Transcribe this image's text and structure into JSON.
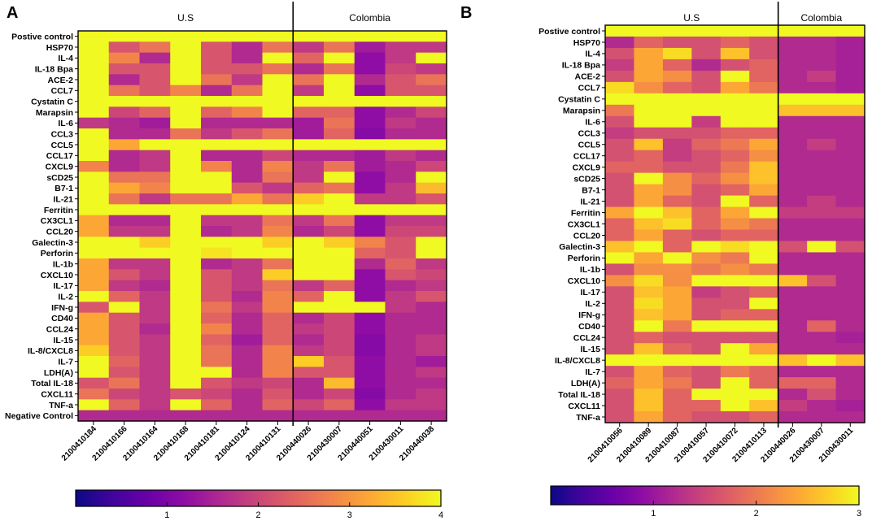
{
  "chart_data": [
    {
      "panel_label": "A",
      "type": "heatmap",
      "groups": [
        {
          "name": "U.S",
          "count": 7
        },
        {
          "name": "Colombia",
          "count": 5
        }
      ],
      "columns": [
        "2100410184",
        "2100410166",
        "2100410164",
        "2100410168",
        "2100410181",
        "2100410124",
        "2100410131",
        "2100440026",
        "2100430007",
        "2100440051",
        "2100430011",
        "2100440038"
      ],
      "rows": [
        "Postive control",
        "HSP70",
        "IL-4",
        "IL-18 Bpa",
        "ACE-2",
        "CCL7",
        "Cystatin C",
        "Marapsin",
        "IL-6",
        "CCL3",
        "CCL5",
        "CCL17",
        "CXCL9",
        "sCD25",
        "B7-1",
        "IL-21",
        "Ferritin",
        "CX3CL1",
        "CCL20",
        "Galectin-3",
        "Perforin",
        "IL-1b",
        "CXCL10",
        "IL-17",
        "IL-2",
        "IFN-g",
        "CD40",
        "CCL24",
        "IL-15",
        "IL-8/CXCL8",
        "IL-7",
        "LDH(A)",
        "Total IL-18",
        "CXCL11",
        "TNF-a",
        "Negative Control"
      ],
      "values": [
        [
          4,
          4,
          4,
          4,
          4,
          4,
          4,
          4,
          4,
          4,
          4,
          4
        ],
        [
          4,
          2.2,
          2.6,
          4,
          2.2,
          1.6,
          2.6,
          1.8,
          2.6,
          1.4,
          1.8,
          1.8
        ],
        [
          4,
          2.8,
          1.6,
          4,
          2.2,
          1.6,
          4,
          2.4,
          4,
          1.2,
          1.8,
          4
        ],
        [
          4,
          2.2,
          2.2,
          4,
          2.2,
          2.2,
          2.6,
          1.6,
          2.6,
          1.2,
          2,
          1.8
        ],
        [
          4,
          1.6,
          2.2,
          4,
          2.6,
          1.8,
          4,
          2.6,
          4,
          1.6,
          2.2,
          2.6
        ],
        [
          4,
          2.6,
          2.2,
          2.8,
          1.6,
          2.6,
          4,
          1.8,
          4,
          1.2,
          2.2,
          2.2
        ],
        [
          4,
          4,
          4,
          4,
          4,
          4,
          4,
          4,
          4,
          4,
          4,
          4
        ],
        [
          4,
          2,
          2.4,
          4,
          2.4,
          2.8,
          4,
          2.4,
          2.4,
          1.2,
          1.6,
          2
        ],
        [
          1.8,
          1.6,
          1.4,
          4,
          1.6,
          1.6,
          1.6,
          1.4,
          2.6,
          1.2,
          1.8,
          1.6
        ],
        [
          4,
          1.6,
          1.6,
          2.6,
          1.8,
          2.2,
          2.6,
          1.4,
          2.4,
          1.1,
          1.6,
          1.6
        ],
        [
          4,
          3.2,
          4,
          4,
          4,
          4,
          4,
          4,
          4,
          4,
          4,
          4
        ],
        [
          4,
          1.6,
          1.8,
          4,
          1.6,
          1.6,
          2,
          1.6,
          1.6,
          1.4,
          1.8,
          1.6
        ],
        [
          2.8,
          1.6,
          1.8,
          4,
          2.8,
          1.6,
          2.8,
          1.8,
          2.6,
          1.4,
          1.6,
          2
        ],
        [
          4,
          2.6,
          2.6,
          4,
          4,
          1.6,
          2.6,
          1.8,
          4,
          1.2,
          1.6,
          4
        ],
        [
          4,
          3.2,
          2.8,
          4,
          4,
          2.2,
          1.8,
          2.4,
          2.6,
          1.2,
          1.8,
          3.4
        ],
        [
          4,
          2.6,
          1.8,
          2.6,
          2.6,
          3.2,
          2.6,
          3.6,
          4,
          1.8,
          1.8,
          2.2
        ],
        [
          4,
          4,
          4,
          4,
          4,
          4,
          4,
          4,
          4,
          4,
          4,
          4
        ],
        [
          3.2,
          1.6,
          1.6,
          4,
          1.8,
          1.8,
          2.6,
          1.8,
          2.6,
          1.2,
          1.8,
          1.8
        ],
        [
          3.2,
          1.8,
          1.8,
          4,
          1.6,
          1.8,
          2.8,
          1.6,
          2,
          1.2,
          2,
          2
        ],
        [
          4,
          4,
          3.6,
          4,
          4,
          4,
          3.6,
          4,
          3.6,
          2.8,
          2.2,
          4
        ],
        [
          4,
          4,
          4,
          4,
          3.8,
          4,
          4,
          4,
          4,
          2.4,
          2.2,
          4
        ],
        [
          3.2,
          1.8,
          1.8,
          4,
          1.6,
          1.8,
          2.6,
          4,
          4,
          1.6,
          2.4,
          1.8
        ],
        [
          3.2,
          2.2,
          1.8,
          4,
          2.2,
          1.8,
          3.6,
          4,
          4,
          1.2,
          2.2,
          2
        ],
        [
          3.2,
          1.8,
          1.6,
          4,
          2.2,
          1.8,
          2.6,
          1.8,
          2.4,
          1.2,
          1.6,
          1.8
        ],
        [
          4,
          2.4,
          1.8,
          4,
          2.2,
          1.6,
          2.8,
          2.4,
          4,
          1.2,
          1.8,
          2.2
        ],
        [
          2.2,
          4,
          1.8,
          4,
          2.6,
          1.8,
          2.8,
          4,
          4,
          4,
          1.8,
          1.6
        ],
        [
          3.2,
          2.2,
          1.8,
          4,
          2.4,
          1.6,
          2.4,
          1.6,
          2,
          1.2,
          1.6,
          1.6
        ],
        [
          3.2,
          2.2,
          1.6,
          4,
          2.8,
          1.6,
          2.4,
          1.8,
          2,
          1.2,
          1.6,
          1.6
        ],
        [
          3.2,
          2.2,
          1.8,
          4,
          2.4,
          1.4,
          2.4,
          1.6,
          2,
          1.1,
          1.6,
          1.8
        ],
        [
          3.6,
          2.2,
          1.8,
          4,
          2.6,
          1.6,
          2.8,
          1.8,
          2,
          1.1,
          1.6,
          1.8
        ],
        [
          4,
          2.4,
          1.8,
          4,
          2.6,
          1.6,
          2.8,
          3.6,
          2.2,
          1.2,
          1.6,
          1.4
        ],
        [
          4,
          2.2,
          1.8,
          4,
          4,
          1.6,
          2.8,
          2.2,
          2.2,
          1.2,
          1.6,
          1.8
        ],
        [
          2.2,
          2.6,
          1.8,
          4,
          2.2,
          1.8,
          2,
          1.6,
          3.4,
          1.2,
          1.6,
          1.6
        ],
        [
          2.6,
          2,
          1.8,
          2.2,
          2,
          1.6,
          2.2,
          1.6,
          2,
          1.1,
          1.6,
          1.8
        ],
        [
          4,
          2.4,
          1.8,
          4,
          2.4,
          1.6,
          2.4,
          2,
          2.4,
          1.2,
          1.8,
          1.8
        ],
        [
          1.6,
          1.6,
          1.6,
          1.6,
          1.6,
          1.6,
          1.6,
          1.6,
          1.6,
          1.6,
          1.6,
          1.6
        ]
      ],
      "colorbar": {
        "min": 0,
        "max": 4,
        "ticks": [
          1,
          2,
          3,
          4
        ]
      }
    },
    {
      "panel_label": "B",
      "type": "heatmap",
      "groups": [
        {
          "name": "U.S",
          "count": 6
        },
        {
          "name": "Colombia",
          "count": 3
        }
      ],
      "columns": [
        "2100410056",
        "2100410089",
        "2100410087",
        "2100410057",
        "2100410072",
        "2100410113",
        "2100440026",
        "2100430007",
        "2100430011"
      ],
      "rows": [
        "Postive control",
        "HSP70",
        "IL-4",
        "IL-18 Bpa",
        "ACE-2",
        "CCL7",
        "Cystatin C",
        "Marapsin",
        "IL-6",
        "CCL3",
        "CCL5",
        "CCL17",
        "CXCL9",
        "sCD25",
        "B7-1",
        "IL-21",
        "Ferritin",
        "CX3CL1",
        "CCL20",
        "Galectin-3",
        "Perforin",
        "IL-1b",
        "CXCL10",
        "IL-17",
        "IL-2",
        "IFN-g",
        "CD40",
        "CCL24",
        "IL-15",
        "IL-8/CXCL8",
        "IL-7",
        "LDH(A)",
        "Total IL-18",
        "CXCL11",
        "TNF-a"
      ],
      "values": [
        [
          3,
          3,
          3,
          3,
          3,
          3,
          3,
          3,
          3
        ],
        [
          1.2,
          1.8,
          1.6,
          1.6,
          1.8,
          1.6,
          1.2,
          1.2,
          1.1
        ],
        [
          1.6,
          2.4,
          2.8,
          1.6,
          2.6,
          1.6,
          1.2,
          1.2,
          1.1
        ],
        [
          1.4,
          2.4,
          1.8,
          1.2,
          1.6,
          1.8,
          1.2,
          1.2,
          1.1
        ],
        [
          1.6,
          2.4,
          2.2,
          1.6,
          3,
          1.8,
          1.2,
          1.4,
          1.1
        ],
        [
          2.8,
          2.2,
          1.8,
          1.6,
          2.4,
          2,
          1.2,
          1.2,
          1.1
        ],
        [
          3,
          3,
          3,
          3,
          3,
          3,
          3,
          3,
          3
        ],
        [
          2,
          3,
          3,
          3,
          3,
          3,
          2.6,
          2.6,
          2.6
        ],
        [
          1.6,
          3,
          3,
          1.4,
          3,
          3,
          1.2,
          1.2,
          1.2
        ],
        [
          1.4,
          1.6,
          1.6,
          1.6,
          1.8,
          1.8,
          1.2,
          1.2,
          1.2
        ],
        [
          1.6,
          2.6,
          1.4,
          1.8,
          2,
          2.4,
          1.2,
          1.4,
          1.2
        ],
        [
          1.6,
          1.8,
          1.4,
          1.6,
          1.8,
          2.2,
          1.2,
          1.2,
          1.2
        ],
        [
          1.8,
          1.8,
          1.6,
          1.6,
          2,
          2.6,
          1.2,
          1.2,
          1.2
        ],
        [
          1.6,
          3,
          2.2,
          1.8,
          2.2,
          2.6,
          1.2,
          1.2,
          1.2
        ],
        [
          1.6,
          2.4,
          2.2,
          1.6,
          1.8,
          2.4,
          1.2,
          1.2,
          1.2
        ],
        [
          1.6,
          2.4,
          1.8,
          1.6,
          3,
          1.8,
          1.2,
          1.4,
          1.2
        ],
        [
          2.4,
          3,
          2.6,
          1.8,
          2.4,
          3,
          1.4,
          1.4,
          1.4
        ],
        [
          1.8,
          2.6,
          2.8,
          1.8,
          2.2,
          2,
          1.2,
          1.2,
          1.2
        ],
        [
          1.8,
          2.4,
          1.8,
          1.6,
          1.8,
          1.8,
          1.2,
          1.2,
          1.2
        ],
        [
          2.6,
          3,
          1.8,
          3,
          2.8,
          3,
          1.6,
          3,
          1.6
        ],
        [
          3,
          2.4,
          3,
          2.2,
          2,
          3,
          1.2,
          1.2,
          1.2
        ],
        [
          1.6,
          2.2,
          2.2,
          2,
          2.2,
          2,
          1.2,
          1.2,
          1.2
        ],
        [
          2.2,
          2.8,
          2.2,
          3,
          3,
          3,
          2.6,
          1.6,
          1.2
        ],
        [
          1.6,
          2.6,
          2.4,
          1.4,
          1.6,
          1.8,
          1.2,
          1.2,
          1.2
        ],
        [
          1.6,
          2.8,
          2.4,
          1.6,
          1.6,
          3,
          1.2,
          1.2,
          1.2
        ],
        [
          1.6,
          2.6,
          2.4,
          1.6,
          1.8,
          1.8,
          1.2,
          1.2,
          1.2
        ],
        [
          1.6,
          3,
          2,
          3,
          3,
          3,
          1.2,
          1.8,
          1.2
        ],
        [
          1.6,
          1.8,
          1.6,
          1.6,
          1.6,
          1.6,
          1.2,
          1.2,
          1.1
        ],
        [
          1.6,
          2.6,
          1.8,
          1.6,
          3,
          2.4,
          1.2,
          1.2,
          1.2
        ],
        [
          3,
          3,
          3,
          3,
          3,
          3,
          2.6,
          3,
          2.6
        ],
        [
          1.6,
          2.4,
          1.8,
          1.6,
          2,
          1.8,
          1.2,
          1.2,
          1.2
        ],
        [
          1.8,
          2.4,
          2,
          1.6,
          3,
          1.8,
          1.8,
          1.8,
          1.2
        ],
        [
          1.6,
          2.6,
          1.8,
          3,
          3,
          3,
          1.2,
          1.6,
          1.2
        ],
        [
          1.6,
          2.6,
          1.8,
          1.8,
          3,
          2.6,
          1.4,
          1.2,
          1.1
        ],
        [
          1.6,
          2.4,
          1.8,
          1.6,
          1.6,
          1.8,
          1.2,
          1.2,
          1.2
        ]
      ],
      "colorbar": {
        "min": 0,
        "max": 3,
        "ticks": [
          1,
          2,
          3
        ]
      }
    }
  ],
  "colors": {
    "colormap": [
      "#0d0887",
      "#41049d",
      "#6a00a8",
      "#8f0da4",
      "#b12a90",
      "#cc4778",
      "#e16462",
      "#f2844b",
      "#fca636",
      "#fcce25",
      "#f0f921"
    ]
  }
}
